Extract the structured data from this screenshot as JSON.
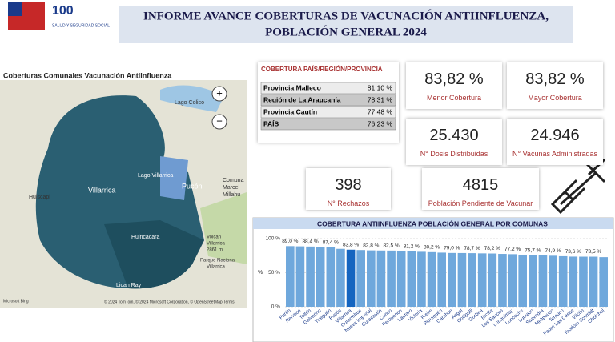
{
  "header": {
    "title_line1": "INFORME AVANCE COBERTURAS  DE VACUNACIÓN ANTIINFLUENZA,",
    "title_line2": "POBLACIÓN GENERAL 2024",
    "logo_number": "100",
    "logo_text": "SALUD Y SEGURIDAD SOCIAL"
  },
  "map": {
    "title": "Coberturas Comunales Vacunación Antiinfluenza",
    "places": [
      "Lago Colico",
      "Lago Villarrica",
      "Comuna",
      "Marcel",
      "Millahu",
      "Huiscapi",
      "Villarrica",
      "Pucón",
      "Huincacara",
      "Volcán",
      "Villarrica",
      "2861 m",
      "Parque Nacional",
      "Villarrica",
      "Lican Ray"
    ],
    "attribution": "© 2024 TomTom, © 2024 Microsoft Corporation, © OpenStreetMap  Terms",
    "provider": "Microsoft Bing"
  },
  "table": {
    "header": "COBERTURA PAÍS/REGIÓN/PROVINCIA",
    "rows": [
      [
        "Provincia Malleco",
        "81,10 %"
      ],
      [
        "Región de La Araucanía",
        "78,31 %"
      ],
      [
        "Provincia Cautín",
        "77,48 %"
      ],
      [
        "PAÍS",
        "76,23 %"
      ]
    ]
  },
  "cards": [
    {
      "value": "83,82 %",
      "label": "Menor Cobertura"
    },
    {
      "value": "83,82 %",
      "label": "Mayor Cobertura"
    },
    {
      "value": "25.430",
      "label": "N° Dosis Distribuidas"
    },
    {
      "value": "24.946",
      "label": "N° Vacunas Administradas"
    },
    {
      "value": "398",
      "label": "N° Rechazos"
    },
    {
      "value": "4815",
      "label": "Población Pendiente de Vacunar"
    }
  ],
  "chart_data": {
    "type": "bar",
    "title": "COBERTURA ANTIINFLUENZA POBLACIÓN GENERAL POR COMUNAS",
    "y_label": "%",
    "categories": [
      "Purén",
      "Renaico",
      "Toltén",
      "Galvarino",
      "Traiguén",
      "Pucón",
      "Villarrica",
      "Curarrehue",
      "Nueva Imperial",
      "Curacautín",
      "Cunco",
      "Perquenco",
      "Lautaro",
      "Victoria",
      "Freire",
      "Pitrufquén",
      "Carahue",
      "Angol",
      "Collipulli",
      "Gorbea",
      "Ercilla",
      "Los Sauces",
      "Lonquimay",
      "Loncoche",
      "Lumaco",
      "Saavedra",
      "Melipeuco",
      "Temuco",
      "Padre Las Casas",
      "Vilcún",
      "Teodoro Schmidt",
      "Cholchol"
    ],
    "values": [
      89.0,
      88.7,
      88.4,
      87.9,
      87.4,
      85.0,
      83.8,
      83.3,
      82.8,
      82.6,
      82.5,
      81.8,
      81.2,
      80.7,
      80.2,
      79.5,
      79.0,
      78.9,
      78.7,
      78.4,
      78.2,
      77.6,
      77.2,
      76.5,
      75.7,
      75.3,
      74.9,
      74.2,
      73.6,
      73.5,
      73.5,
      72.8
    ],
    "value_labels": [
      "89,0 %",
      null,
      "88,4 %",
      null,
      "87,4 %",
      null,
      "83,8 %",
      null,
      "82,8 %",
      null,
      "82,5 %",
      null,
      "81,2 %",
      null,
      "80,2 %",
      null,
      "79,0 %",
      null,
      "78,7 %",
      null,
      "78,2 %",
      null,
      "77,2 %",
      null,
      "75,7 %",
      null,
      "74,9 %",
      null,
      "73,6 %",
      null,
      "73,5 %",
      null
    ],
    "colors": [
      "#6fa8dc",
      "#6fa8dc",
      "#6fa8dc",
      "#6fa8dc",
      "#6fa8dc",
      "#6fa8dc",
      "#1565c0",
      "#6fa8dc",
      "#6fa8dc",
      "#6fa8dc",
      "#6fa8dc",
      "#6fa8dc",
      "#6fa8dc",
      "#6fa8dc",
      "#6fa8dc",
      "#6fa8dc",
      "#6fa8dc",
      "#6fa8dc",
      "#6fa8dc",
      "#6fa8dc",
      "#6fa8dc",
      "#6fa8dc",
      "#6fa8dc",
      "#6fa8dc",
      "#6fa8dc",
      "#6fa8dc",
      "#6fa8dc",
      "#6fa8dc",
      "#6fa8dc",
      "#6fa8dc",
      "#6fa8dc",
      "#6fa8dc"
    ],
    "ylim": [
      0,
      100
    ],
    "yticks": [
      {
        "value": 0,
        "label": "0 %"
      },
      {
        "value": 50,
        "label": "50 %"
      },
      {
        "value": 100,
        "label": "100 %"
      }
    ],
    "grid": true
  }
}
